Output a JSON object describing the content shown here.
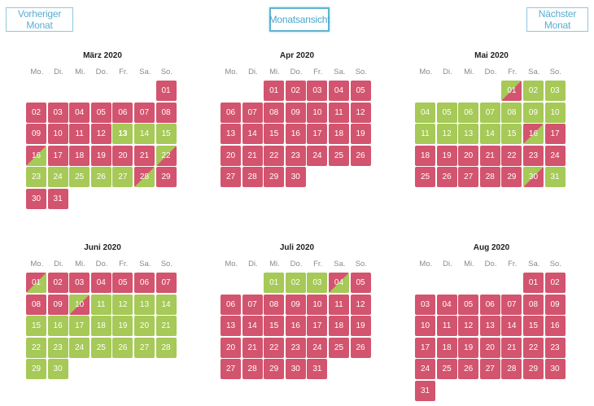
{
  "nav": {
    "prev_label": "Vorheriger Monat",
    "month_view_label": "Monatsansicht",
    "next_label": "Nächster Monat"
  },
  "weekdays": [
    "Mo.",
    "Di.",
    "Mi.",
    "Do.",
    "Fr.",
    "Sa.",
    "So."
  ],
  "colors": {
    "booked": "#d3546e",
    "free": "#a6c957",
    "accent": "#5aaed0"
  },
  "months": [
    {
      "title": "März 2020",
      "offset": 6,
      "days": [
        "01",
        "02",
        "03",
        "04",
        "05",
        "06",
        "07",
        "08",
        "09",
        "10",
        "11",
        "12",
        "13",
        "14",
        "15",
        "16",
        "17",
        "18",
        "19",
        "20",
        "21",
        "22",
        "23",
        "24",
        "25",
        "26",
        "27",
        "28",
        "29",
        "30",
        "31"
      ],
      "status": [
        "b",
        "b",
        "b",
        "b",
        "b",
        "b",
        "b",
        "b",
        "b",
        "b",
        "b",
        "b",
        "f",
        "f",
        "f",
        "o",
        "b",
        "b",
        "b",
        "b",
        "b",
        "i",
        "f",
        "f",
        "f",
        "f",
        "f",
        "o",
        "b",
        "b",
        "b"
      ],
      "bold": [
        "13"
      ]
    },
    {
      "title": "Apr 2020",
      "offset": 2,
      "days": [
        "01",
        "02",
        "03",
        "04",
        "05",
        "06",
        "07",
        "08",
        "09",
        "10",
        "11",
        "12",
        "13",
        "14",
        "15",
        "16",
        "17",
        "18",
        "19",
        "20",
        "21",
        "22",
        "23",
        "24",
        "25",
        "26",
        "27",
        "28",
        "29",
        "30"
      ],
      "status": [
        "b",
        "b",
        "b",
        "b",
        "b",
        "b",
        "b",
        "b",
        "b",
        "b",
        "b",
        "b",
        "b",
        "b",
        "b",
        "b",
        "b",
        "b",
        "b",
        "b",
        "b",
        "b",
        "b",
        "b",
        "b",
        "b",
        "b",
        "b",
        "b",
        "b"
      ],
      "bold": []
    },
    {
      "title": "Mai 2020",
      "offset": 4,
      "days": [
        "01",
        "02",
        "03",
        "04",
        "05",
        "06",
        "07",
        "08",
        "09",
        "10",
        "11",
        "12",
        "13",
        "14",
        "15",
        "16",
        "17",
        "18",
        "19",
        "20",
        "21",
        "22",
        "23",
        "24",
        "25",
        "26",
        "27",
        "28",
        "29",
        "30",
        "31"
      ],
      "status": [
        "i",
        "f",
        "f",
        "f",
        "f",
        "f",
        "f",
        "f",
        "f",
        "f",
        "f",
        "f",
        "f",
        "f",
        "f",
        "o",
        "b",
        "b",
        "b",
        "b",
        "b",
        "b",
        "b",
        "b",
        "b",
        "b",
        "b",
        "b",
        "b",
        "i",
        "f"
      ],
      "bold": []
    },
    {
      "title": "Juni 2020",
      "offset": 0,
      "days": [
        "01",
        "02",
        "03",
        "04",
        "05",
        "06",
        "07",
        "08",
        "09",
        "10",
        "11",
        "12",
        "13",
        "14",
        "15",
        "16",
        "17",
        "18",
        "19",
        "20",
        "21",
        "22",
        "23",
        "24",
        "25",
        "26",
        "27",
        "28",
        "29",
        "30"
      ],
      "status": [
        "o",
        "b",
        "b",
        "b",
        "b",
        "b",
        "b",
        "b",
        "b",
        "i",
        "f",
        "f",
        "f",
        "f",
        "f",
        "f",
        "f",
        "f",
        "f",
        "f",
        "f",
        "f",
        "f",
        "f",
        "f",
        "f",
        "f",
        "f",
        "f",
        "f"
      ],
      "bold": []
    },
    {
      "title": "Juli 2020",
      "offset": 2,
      "days": [
        "01",
        "02",
        "03",
        "04",
        "05",
        "06",
        "07",
        "08",
        "09",
        "10",
        "11",
        "12",
        "13",
        "14",
        "15",
        "16",
        "17",
        "18",
        "19",
        "20",
        "21",
        "22",
        "23",
        "24",
        "25",
        "26",
        "27",
        "28",
        "29",
        "30",
        "31"
      ],
      "status": [
        "f",
        "f",
        "f",
        "o",
        "b",
        "b",
        "b",
        "b",
        "b",
        "b",
        "b",
        "b",
        "b",
        "b",
        "b",
        "b",
        "b",
        "b",
        "b",
        "b",
        "b",
        "b",
        "b",
        "b",
        "b",
        "b",
        "b",
        "b",
        "b",
        "b",
        "b"
      ],
      "bold": []
    },
    {
      "title": "Aug 2020",
      "offset": 5,
      "days": [
        "01",
        "02",
        "03",
        "04",
        "05",
        "06",
        "07",
        "08",
        "09",
        "10",
        "11",
        "12",
        "13",
        "14",
        "15",
        "16",
        "17",
        "18",
        "19",
        "20",
        "21",
        "22",
        "23",
        "24",
        "25",
        "26",
        "27",
        "28",
        "29",
        "30",
        "31"
      ],
      "status": [
        "b",
        "b",
        "b",
        "b",
        "b",
        "b",
        "b",
        "b",
        "b",
        "b",
        "b",
        "b",
        "b",
        "b",
        "b",
        "b",
        "b",
        "b",
        "b",
        "b",
        "b",
        "b",
        "b",
        "b",
        "b",
        "b",
        "b",
        "b",
        "b",
        "b",
        "b"
      ],
      "bold": []
    }
  ]
}
